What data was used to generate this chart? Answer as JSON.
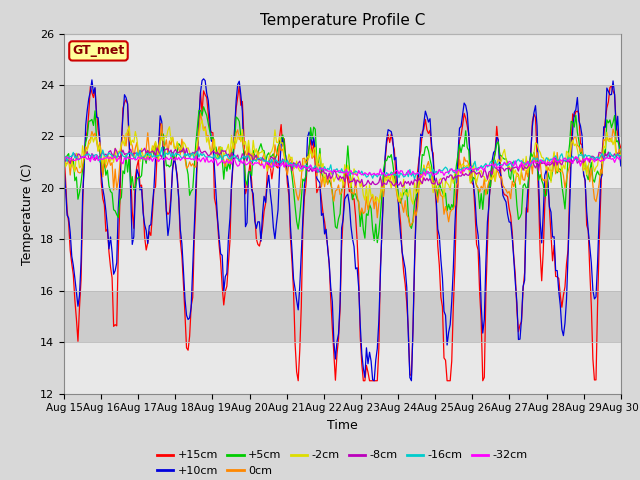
{
  "title": "Temperature Profile C",
  "xlabel": "Time",
  "ylabel": "Temperature (C)",
  "ylim": [
    12,
    26
  ],
  "yticks": [
    12,
    14,
    16,
    18,
    20,
    22,
    24,
    26
  ],
  "xlim_days": [
    15,
    30
  ],
  "xtick_days": [
    15,
    16,
    17,
    18,
    19,
    20,
    21,
    22,
    23,
    24,
    25,
    26,
    27,
    28,
    29,
    30
  ],
  "legend_label": "GT_met",
  "legend_box_color": "#ffff99",
  "legend_box_edge": "#cc0000",
  "background_color": "#d8d8d8",
  "plot_bg_color": "#f0f0f0",
  "band_light": "#e8e8e8",
  "band_dark": "#cccccc",
  "series": [
    {
      "label": "+15cm",
      "color": "#ff0000"
    },
    {
      "label": "+10cm",
      "color": "#0000dd"
    },
    {
      "label": "+5cm",
      "color": "#00cc00"
    },
    {
      "label": "0cm",
      "color": "#ff8800"
    },
    {
      "label": "-2cm",
      "color": "#dddd00"
    },
    {
      "label": "-8cm",
      "color": "#bb00bb"
    },
    {
      "label": "-16cm",
      "color": "#00cccc"
    },
    {
      "label": "-32cm",
      "color": "#ff00ff"
    }
  ]
}
